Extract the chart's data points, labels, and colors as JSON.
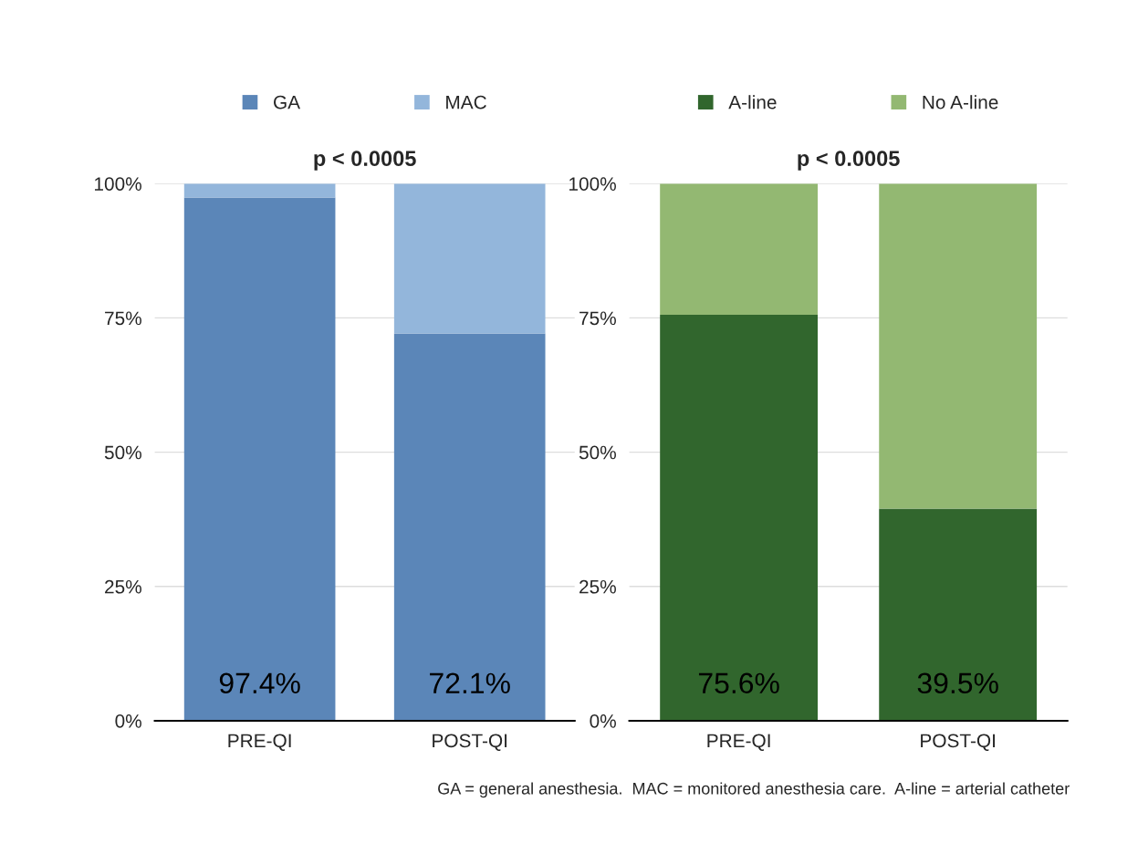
{
  "chart_data": [
    {
      "type": "bar",
      "title": "p < 0.0005",
      "categories": [
        "PRE-QI",
        "POST-QI"
      ],
      "stacked": true,
      "ylim": [
        0,
        100
      ],
      "yticks": [
        {
          "value": 0,
          "label": "0%"
        },
        {
          "value": 25,
          "label": "25%"
        },
        {
          "value": 50,
          "label": "50%"
        },
        {
          "value": 75,
          "label": "75%"
        },
        {
          "value": 100,
          "label": "100%"
        }
      ],
      "grid": "y",
      "legend": "top",
      "series": [
        {
          "name": "GA",
          "color": "#5b86b8",
          "values": [
            97.4,
            72.1
          ],
          "value_labels": [
            "97.4%",
            "72.1%"
          ]
        },
        {
          "name": "MAC",
          "color": "#93b6db",
          "values": [
            2.6,
            27.9
          ]
        }
      ]
    },
    {
      "type": "bar",
      "title": "p < 0.0005",
      "categories": [
        "PRE-QI",
        "POST-QI"
      ],
      "stacked": true,
      "ylim": [
        0,
        100
      ],
      "yticks": [
        {
          "value": 0,
          "label": "0%"
        },
        {
          "value": 25,
          "label": "25%"
        },
        {
          "value": 50,
          "label": "50%"
        },
        {
          "value": 75,
          "label": "75%"
        },
        {
          "value": 100,
          "label": "100%"
        }
      ],
      "grid": "y",
      "legend": "top",
      "annotations": [
        "GA = general anesthesia.  MAC = monitored anesthesia care.  A-line = arterial catheter"
      ],
      "series": [
        {
          "name": "A-line",
          "color": "#31662d",
          "values": [
            75.6,
            39.5
          ],
          "value_labels": [
            "75.6%",
            "39.5%"
          ]
        },
        {
          "name": "No A-line",
          "color": "#93b872",
          "values": [
            24.4,
            60.5
          ]
        }
      ]
    }
  ]
}
